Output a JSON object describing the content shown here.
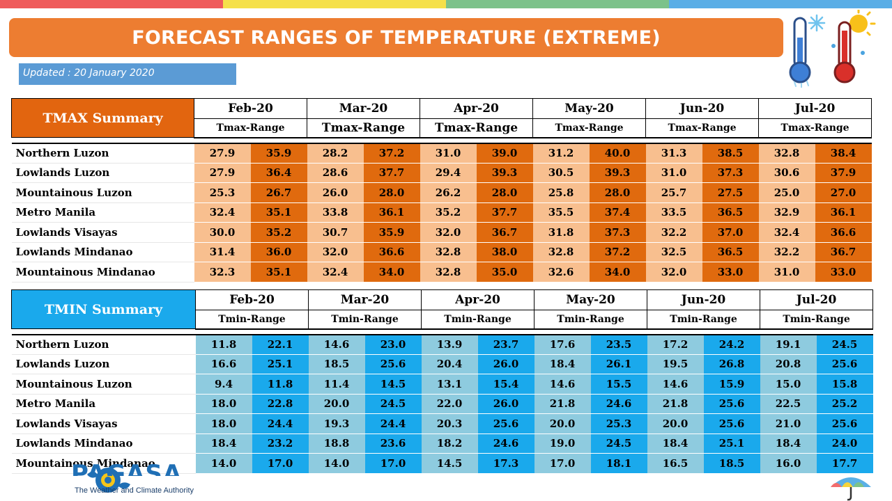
{
  "title": "FORECAST RANGES OF TEMPERATURE (EXTREME)",
  "updated": "Updated : 20 January 2020",
  "topbar_colors": [
    "#ef5b5b",
    "#f5e04a",
    "#7cc28a",
    "#5aaee6"
  ],
  "icons": [
    "thermometer-cold-icon",
    "thermometer-hot-icon",
    "pagasa-logo-icon",
    "umbrella-icon"
  ],
  "footer": {
    "brand": "PAGASA",
    "tagline": "The Weather and Climate Authority"
  },
  "months": [
    "Feb-20",
    "Mar-20",
    "Apr-20",
    "May-20",
    "Jun-20",
    "Jul-20"
  ],
  "regions": [
    "Northern Luzon",
    "Lowlands Luzon",
    "Mountainous Luzon",
    "Metro Manila",
    "Lowlands Visayas",
    "Lowlands Mindanao",
    "Mountainous Mindanao"
  ],
  "tmax": {
    "label": "TMAX Summary",
    "range_label": "Tmax-Range",
    "color_low": "#f8bf8f",
    "color_high": "#e06a0e",
    "values": [
      [
        [
          "27.9",
          "35.9"
        ],
        [
          "28.2",
          "37.2"
        ],
        [
          "31.0",
          "39.0"
        ],
        [
          "31.2",
          "40.0"
        ],
        [
          "31.3",
          "38.5"
        ],
        [
          "32.8",
          "38.4"
        ]
      ],
      [
        [
          "27.9",
          "36.4"
        ],
        [
          "28.6",
          "37.7"
        ],
        [
          "29.4",
          "39.3"
        ],
        [
          "30.5",
          "39.3"
        ],
        [
          "31.0",
          "37.3"
        ],
        [
          "30.6",
          "37.9"
        ]
      ],
      [
        [
          "25.3",
          "26.7"
        ],
        [
          "26.0",
          "28.0"
        ],
        [
          "26.2",
          "28.0"
        ],
        [
          "25.8",
          "28.0"
        ],
        [
          "25.7",
          "27.5"
        ],
        [
          "25.0",
          "27.0"
        ]
      ],
      [
        [
          "32.4",
          "35.1"
        ],
        [
          "33.8",
          "36.1"
        ],
        [
          "35.2",
          "37.7"
        ],
        [
          "35.5",
          "37.4"
        ],
        [
          "33.5",
          "36.5"
        ],
        [
          "32.9",
          "36.1"
        ]
      ],
      [
        [
          "30.0",
          "35.2"
        ],
        [
          "30.7",
          "35.9"
        ],
        [
          "32.0",
          "36.7"
        ],
        [
          "31.8",
          "37.3"
        ],
        [
          "32.2",
          "37.0"
        ],
        [
          "32.4",
          "36.6"
        ]
      ],
      [
        [
          "31.4",
          "36.0"
        ],
        [
          "32.0",
          "36.6"
        ],
        [
          "32.8",
          "38.0"
        ],
        [
          "32.8",
          "37.2"
        ],
        [
          "32.5",
          "36.5"
        ],
        [
          "32.2",
          "36.7"
        ]
      ],
      [
        [
          "32.3",
          "35.1"
        ],
        [
          "32.4",
          "34.0"
        ],
        [
          "32.8",
          "35.0"
        ],
        [
          "32.6",
          "34.0"
        ],
        [
          "32.0",
          "33.0"
        ],
        [
          "31.0",
          "33.0"
        ]
      ]
    ]
  },
  "tmin": {
    "label": "TMIN Summary",
    "range_label": "Tmin-Range",
    "color_low": "#8ecbdf",
    "color_high": "#1aa9ec",
    "values": [
      [
        [
          "11.8",
          "22.1"
        ],
        [
          "14.6",
          "23.0"
        ],
        [
          "13.9",
          "23.7"
        ],
        [
          "17.6",
          "23.5"
        ],
        [
          "17.2",
          "24.2"
        ],
        [
          "19.1",
          "24.5"
        ]
      ],
      [
        [
          "16.6",
          "25.1"
        ],
        [
          "18.5",
          "25.6"
        ],
        [
          "20.4",
          "26.0"
        ],
        [
          "18.4",
          "26.1"
        ],
        [
          "19.5",
          "26.8"
        ],
        [
          "20.8",
          "25.6"
        ]
      ],
      [
        [
          "9.4",
          "11.8"
        ],
        [
          "11.4",
          "14.5"
        ],
        [
          "13.1",
          "15.4"
        ],
        [
          "14.6",
          "15.5"
        ],
        [
          "14.6",
          "15.9"
        ],
        [
          "15.0",
          "15.8"
        ]
      ],
      [
        [
          "18.0",
          "22.8"
        ],
        [
          "20.0",
          "24.5"
        ],
        [
          "22.0",
          "26.0"
        ],
        [
          "21.8",
          "24.6"
        ],
        [
          "21.8",
          "25.6"
        ],
        [
          "22.5",
          "25.2"
        ]
      ],
      [
        [
          "18.0",
          "24.4"
        ],
        [
          "19.3",
          "24.4"
        ],
        [
          "20.3",
          "25.6"
        ],
        [
          "20.0",
          "25.3"
        ],
        [
          "20.0",
          "25.6"
        ],
        [
          "21.0",
          "25.6"
        ]
      ],
      [
        [
          "18.4",
          "23.2"
        ],
        [
          "18.8",
          "23.6"
        ],
        [
          "18.2",
          "24.6"
        ],
        [
          "19.0",
          "24.5"
        ],
        [
          "18.4",
          "25.1"
        ],
        [
          "18.4",
          "24.0"
        ]
      ],
      [
        [
          "14.0",
          "17.0"
        ],
        [
          "14.0",
          "17.0"
        ],
        [
          "14.5",
          "17.3"
        ],
        [
          "17.0",
          "18.1"
        ],
        [
          "16.5",
          "18.5"
        ],
        [
          "16.0",
          "17.7"
        ]
      ]
    ]
  }
}
